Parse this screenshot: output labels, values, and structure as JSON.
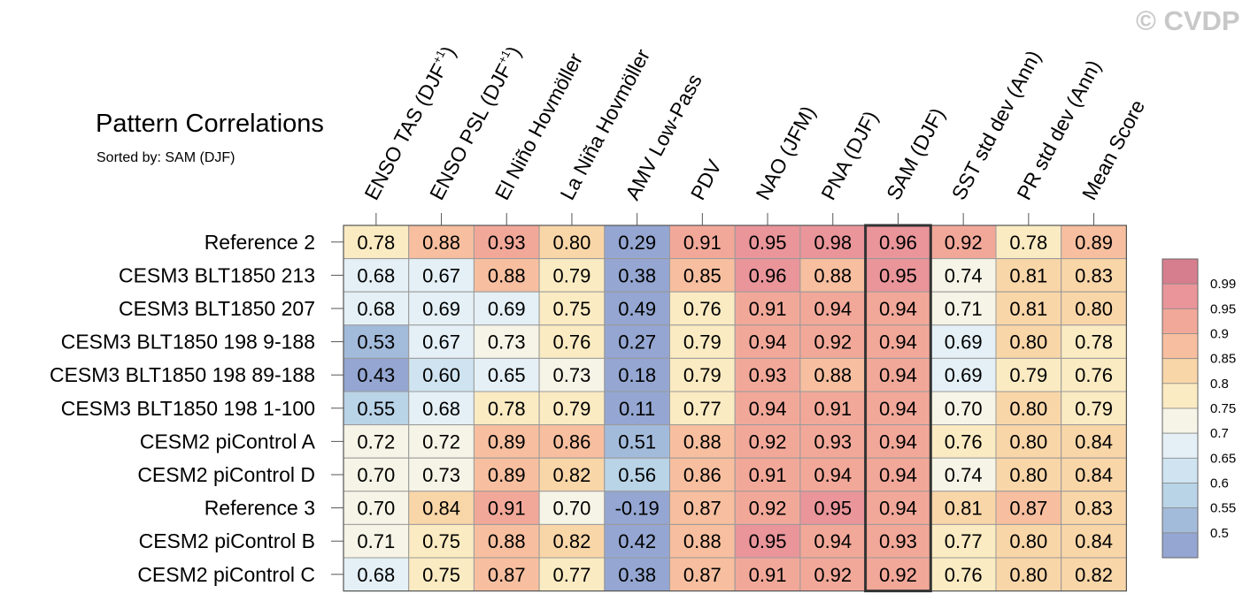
{
  "watermark": "© CVDP",
  "chart_data": {
    "type": "heatmap",
    "title": "Pattern Correlations",
    "subtitle": "Sorted by: SAM (DJF)",
    "highlight_column": "SAM (DJF)",
    "columns": [
      {
        "main": "ENSO TAS (DJF",
        "sup": "+1",
        "end": ")"
      },
      {
        "main": "ENSO PSL (DJF",
        "sup": "+1",
        "end": ")"
      },
      {
        "main": "El Niño Hovmöller",
        "sup": "",
        "end": ""
      },
      {
        "main": "La Niña Hovmöller",
        "sup": "",
        "end": ""
      },
      {
        "main": "AMV Low-Pass",
        "sup": "",
        "end": ""
      },
      {
        "main": "PDV",
        "sup": "",
        "end": ""
      },
      {
        "main": "NAO (JFM)",
        "sup": "",
        "end": ""
      },
      {
        "main": "PNA (DJF)",
        "sup": "",
        "end": ""
      },
      {
        "main": "SAM (DJF)",
        "sup": "",
        "end": ""
      },
      {
        "main": "SST std dev (Ann)",
        "sup": "",
        "end": ""
      },
      {
        "main": "PR std dev (Ann)",
        "sup": "",
        "end": ""
      },
      {
        "main": "Mean Score",
        "sup": "",
        "end": ""
      }
    ],
    "rows": [
      "Reference 2",
      "CESM3 BLT1850 213",
      "CESM3 BLT1850 207",
      "CESM3 BLT1850 198 9-188",
      "CESM3 BLT1850 198 89-188",
      "CESM3 BLT1850 198 1-100",
      "CESM2 piControl A",
      "CESM2 piControl D",
      "Reference 3",
      "CESM2 piControl B",
      "CESM2 piControl C"
    ],
    "values": [
      [
        "0.78",
        "0.88",
        "0.93",
        "0.80",
        "0.29",
        "0.91",
        "0.95",
        "0.98",
        "0.96",
        "0.92",
        "0.78",
        "0.89"
      ],
      [
        "0.68",
        "0.67",
        "0.88",
        "0.79",
        "0.38",
        "0.85",
        "0.96",
        "0.88",
        "0.95",
        "0.74",
        "0.81",
        "0.83"
      ],
      [
        "0.68",
        "0.69",
        "0.69",
        "0.75",
        "0.49",
        "0.76",
        "0.91",
        "0.94",
        "0.94",
        "0.71",
        "0.81",
        "0.80"
      ],
      [
        "0.53",
        "0.67",
        "0.73",
        "0.76",
        "0.27",
        "0.79",
        "0.94",
        "0.92",
        "0.94",
        "0.69",
        "0.80",
        "0.78"
      ],
      [
        "0.43",
        "0.60",
        "0.65",
        "0.73",
        "0.18",
        "0.79",
        "0.93",
        "0.88",
        "0.94",
        "0.69",
        "0.79",
        "0.76"
      ],
      [
        "0.55",
        "0.68",
        "0.78",
        "0.79",
        "0.11",
        "0.77",
        "0.94",
        "0.91",
        "0.94",
        "0.70",
        "0.80",
        "0.79"
      ],
      [
        "0.72",
        "0.72",
        "0.89",
        "0.86",
        "0.51",
        "0.88",
        "0.92",
        "0.93",
        "0.94",
        "0.76",
        "0.80",
        "0.84"
      ],
      [
        "0.70",
        "0.73",
        "0.89",
        "0.82",
        "0.56",
        "0.86",
        "0.91",
        "0.94",
        "0.94",
        "0.74",
        "0.80",
        "0.84"
      ],
      [
        "0.70",
        "0.84",
        "0.91",
        "0.70",
        "-0.19",
        "0.87",
        "0.92",
        "0.95",
        "0.94",
        "0.81",
        "0.87",
        "0.83"
      ],
      [
        "0.71",
        "0.75",
        "0.88",
        "0.82",
        "0.42",
        "0.88",
        "0.95",
        "0.94",
        "0.93",
        "0.77",
        "0.80",
        "0.84"
      ],
      [
        "0.68",
        "0.75",
        "0.87",
        "0.77",
        "0.38",
        "0.87",
        "0.91",
        "0.92",
        "0.92",
        "0.76",
        "0.80",
        "0.82"
      ]
    ],
    "colorbar": {
      "labels": [
        "0.99",
        "0.95",
        "0.9",
        "0.85",
        "0.8",
        "0.75",
        "0.7",
        "0.65",
        "0.6",
        "0.55",
        "0.5"
      ],
      "colors": [
        "#d67e8e",
        "#e9959a",
        "#f2a899",
        "#f7bf9f",
        "#f9d6a8",
        "#fbebc2",
        "#f5f4e6",
        "#e4f0f6",
        "#cfe4f0",
        "#b9d3e7",
        "#a3bbdb",
        "#94a6d1"
      ]
    }
  }
}
